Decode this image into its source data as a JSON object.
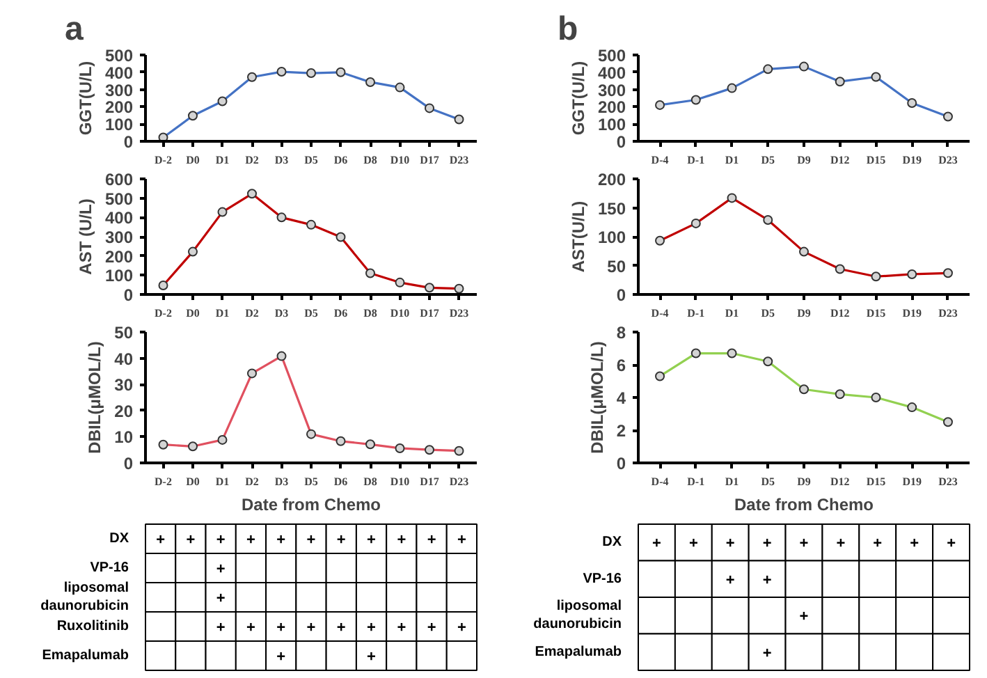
{
  "chart_data": [
    {
      "type": "line",
      "title": "a",
      "categories": [
        "D-2",
        "D0",
        "D1",
        "D2",
        "D3",
        "D5",
        "D6",
        "D8",
        "D10",
        "D17",
        "D23"
      ],
      "ylabel": "GGT(U/L)",
      "ylim": [
        0,
        500
      ],
      "yticks": [
        0,
        100,
        200,
        300,
        400,
        500
      ],
      "marker": "circle",
      "series": [
        {
          "color": "#4472c4",
          "values": [
            22,
            148,
            232,
            372,
            403,
            395,
            400,
            343,
            312,
            192,
            127
          ]
        }
      ]
    },
    {
      "type": "line",
      "categories": [
        "D-2",
        "D0",
        "D1",
        "D2",
        "D3",
        "D5",
        "D6",
        "D8",
        "D10",
        "D17",
        "D23"
      ],
      "ylabel": "AST (U/L)",
      "ylim": [
        0,
        600
      ],
      "yticks": [
        0,
        100,
        200,
        300,
        400,
        500,
        600
      ],
      "marker": "circle",
      "series": [
        {
          "color": "#c00000",
          "values": [
            47,
            222,
            428,
            523,
            400,
            362,
            298,
            110,
            62,
            35,
            30
          ]
        }
      ]
    },
    {
      "type": "line",
      "categories": [
        "D-2",
        "D0",
        "D1",
        "D2",
        "D3",
        "D5",
        "D6",
        "D8",
        "D10",
        "D17",
        "D23"
      ],
      "ylabel": "DBIL(μMOL/L)",
      "xlabel": "Date from Chemo",
      "ylim": [
        0,
        50
      ],
      "yticks": [
        0,
        10,
        20,
        30,
        40,
        50
      ],
      "marker": "circle",
      "series": [
        {
          "color": "#e0505f",
          "values": [
            7,
            6.3,
            8.8,
            34.2,
            40.8,
            11,
            8.3,
            7.1,
            5.6,
            5.0,
            4.6
          ]
        }
      ]
    },
    {
      "type": "heatmap",
      "categories": [
        null,
        null,
        null,
        null,
        null,
        null,
        null,
        null,
        null,
        null,
        null
      ],
      "y_categories": [
        "DX",
        "VP-16",
        "liposomal daunorubicin",
        "Ruxolitinib",
        "Emapalumab"
      ],
      "cells": [
        [
          null,
          null,
          null,
          null,
          null,
          null,
          null,
          null,
          null,
          null,
          null
        ],
        [
          null,
          null,
          null,
          null,
          null,
          null,
          null,
          null,
          null,
          null,
          null
        ],
        [
          null,
          null,
          null,
          null,
          null,
          null,
          null,
          null,
          null,
          null,
          null
        ],
        [
          null,
          null,
          null,
          null,
          null,
          null,
          null,
          null,
          null,
          null,
          null
        ],
        [
          null,
          null,
          null,
          null,
          null,
          null,
          null,
          null,
          null,
          null,
          null
        ]
      ],
      "cell_labels": [
        [
          "+",
          "+",
          "+",
          "+",
          "+",
          "+",
          "+",
          "+",
          "+",
          "+",
          "+"
        ],
        [
          null,
          null,
          "+",
          null,
          null,
          null,
          null,
          null,
          null,
          null,
          null
        ],
        [
          null,
          null,
          "+",
          null,
          null,
          null,
          null,
          null,
          null,
          null,
          null
        ],
        [
          null,
          null,
          "+",
          "+",
          "+",
          "+",
          "+",
          "+",
          "+",
          "+",
          "+"
        ],
        [
          null,
          null,
          null,
          null,
          "+",
          null,
          null,
          "+",
          null,
          null,
          null
        ]
      ]
    },
    {
      "type": "line",
      "title": "b",
      "categories": [
        "D-4",
        "D-1",
        "D1",
        "D5",
        "D9",
        "D12",
        "D15",
        "D19",
        "D23"
      ],
      "ylabel": "GGT(U/L)",
      "ylim": [
        0,
        500
      ],
      "yticks": [
        0,
        100,
        200,
        300,
        400,
        500
      ],
      "marker": "circle",
      "series": [
        {
          "color": "#4472c4",
          "values": [
            210,
            240,
            308,
            418,
            433,
            346,
            373,
            222,
            143
          ]
        }
      ]
    },
    {
      "type": "line",
      "categories": [
        "D-4",
        "D-1",
        "D1",
        "D5",
        "D9",
        "D12",
        "D15",
        "D19",
        "D23"
      ],
      "ylabel": "AST(U/L)",
      "ylim": [
        0,
        200
      ],
      "yticks": [
        0,
        50,
        100,
        150,
        200
      ],
      "marker": "circle",
      "series": [
        {
          "color": "#c00000",
          "values": [
            93,
            123,
            167,
            129,
            74,
            44,
            31,
            35,
            37
          ]
        }
      ]
    },
    {
      "type": "line",
      "categories": [
        "D-4",
        "D-1",
        "D1",
        "D5",
        "D9",
        "D12",
        "D15",
        "D19",
        "D23"
      ],
      "ylabel": "DBIL(μMOL/L)",
      "xlabel": "Date from Chemo",
      "ylim": [
        0,
        8
      ],
      "yticks": [
        0,
        2,
        4,
        6,
        8
      ],
      "marker": "circle",
      "series": [
        {
          "color": "#92d050",
          "values": [
            5.3,
            6.7,
            6.7,
            6.2,
            4.5,
            4.2,
            4.0,
            3.4,
            2.5
          ]
        }
      ]
    },
    {
      "type": "heatmap",
      "categories": [
        null,
        null,
        null,
        null,
        null,
        null,
        null,
        null,
        null
      ],
      "y_categories": [
        "DX",
        "VP-16",
        "liposomal daunorubicin",
        "Emapalumab"
      ],
      "cells": [
        [
          null,
          null,
          null,
          null,
          null,
          null,
          null,
          null,
          null
        ],
        [
          null,
          null,
          null,
          null,
          null,
          null,
          null,
          null,
          null
        ],
        [
          null,
          null,
          null,
          null,
          null,
          null,
          null,
          null,
          null
        ],
        [
          null,
          null,
          null,
          null,
          null,
          null,
          null,
          null,
          null
        ]
      ],
      "cell_labels": [
        [
          "+",
          "+",
          "+",
          "+",
          "+",
          "+",
          "+",
          "+",
          "+"
        ],
        [
          null,
          null,
          "+",
          "+",
          null,
          null,
          null,
          null,
          null
        ],
        [
          null,
          null,
          null,
          null,
          "+",
          null,
          null,
          null,
          null
        ],
        [
          null,
          null,
          null,
          "+",
          null,
          null,
          null,
          null,
          null
        ]
      ]
    }
  ]
}
